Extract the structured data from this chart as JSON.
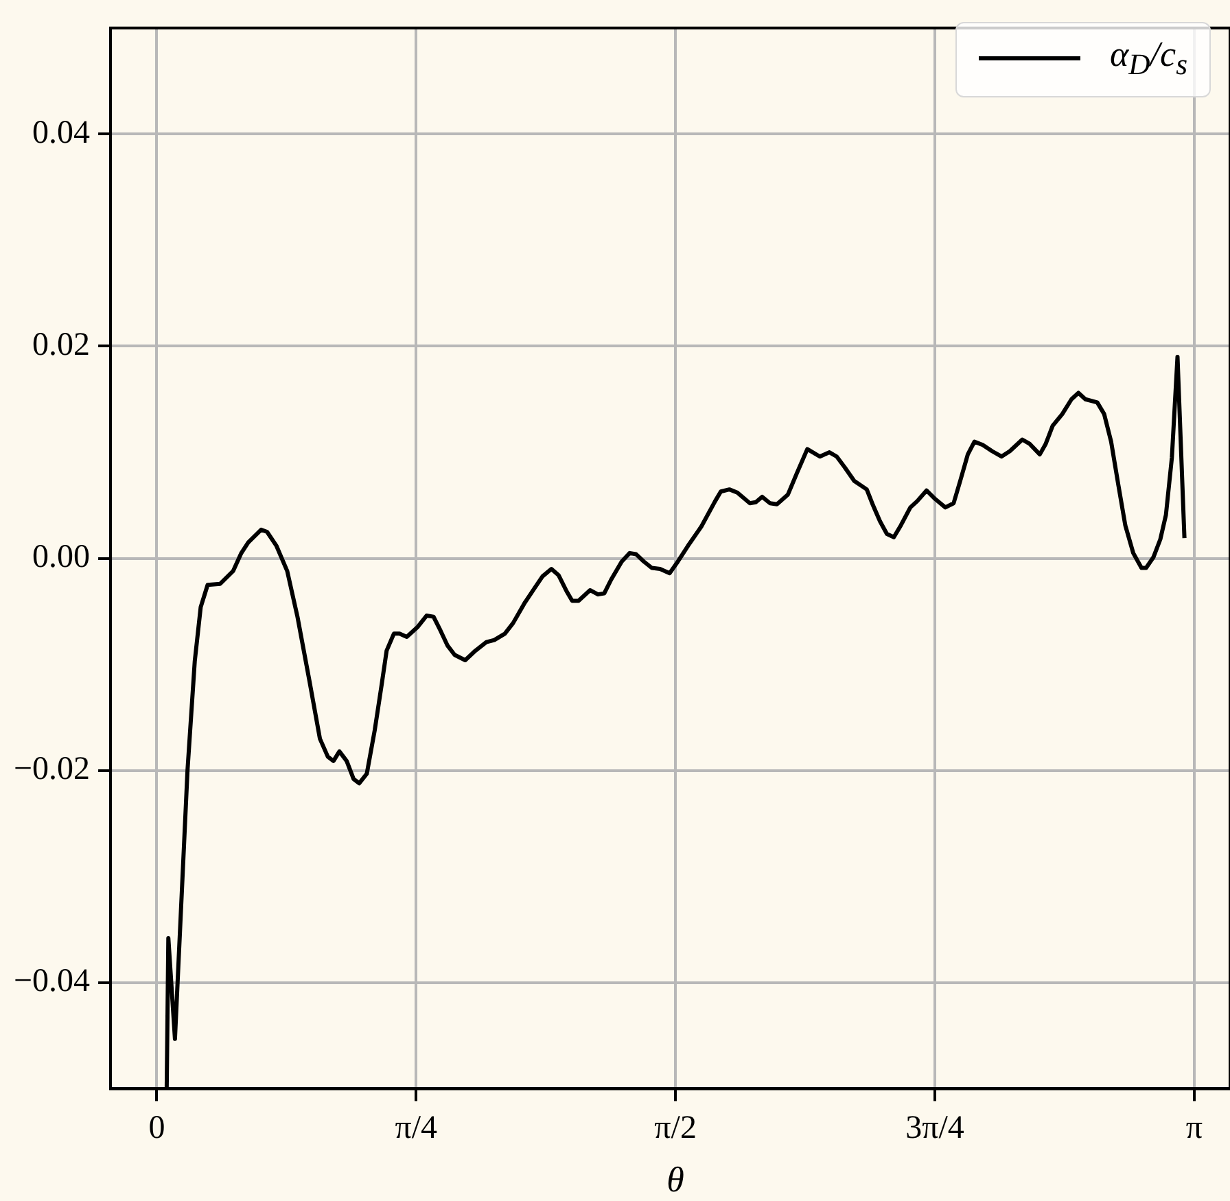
{
  "chart_data": {
    "type": "line",
    "xlabel": "θ",
    "legend": "top right",
    "grid": true,
    "marker": "none",
    "line_style": "solid",
    "xlim": [
      -0.14,
      3.25
    ],
    "ylim": [
      -0.05,
      0.05
    ],
    "xticks": [
      {
        "value": 0,
        "label": "0"
      },
      {
        "value": 0.7854,
        "label": "π/4"
      },
      {
        "value": 1.5708,
        "label": "π/2"
      },
      {
        "value": 2.3562,
        "label": "3π/4"
      },
      {
        "value": 3.1416,
        "label": "π"
      }
    ],
    "yticks": [
      {
        "value": -0.04,
        "label": "−0.04"
      },
      {
        "value": -0.02,
        "label": "−0.02"
      },
      {
        "value": 0,
        "label": "0.00"
      },
      {
        "value": 0.02,
        "label": "0.02"
      },
      {
        "value": 0.04,
        "label": "0.04"
      }
    ],
    "series": [
      {
        "name": "α$_{D}$/c$_{s}$",
        "color": "#000000",
        "x": [
          0.03,
          0.035,
          0.055,
          0.093,
          0.115,
          0.133,
          0.154,
          0.192,
          0.231,
          0.256,
          0.277,
          0.316,
          0.334,
          0.362,
          0.395,
          0.426,
          0.462,
          0.494,
          0.518,
          0.535,
          0.553,
          0.575,
          0.596,
          0.613,
          0.636,
          0.66,
          0.681,
          0.696,
          0.718,
          0.735,
          0.757,
          0.789,
          0.817,
          0.838,
          0.859,
          0.88,
          0.902,
          0.934,
          0.965,
          0.998,
          1.022,
          1.054,
          1.079,
          1.114,
          1.142,
          1.168,
          1.195,
          1.217,
          1.241,
          1.258,
          1.277,
          1.312,
          1.336,
          1.355,
          1.376,
          1.408,
          1.432,
          1.451,
          1.475,
          1.499,
          1.524,
          1.553,
          1.578,
          1.609,
          1.649,
          1.691,
          1.708,
          1.734,
          1.758,
          1.796,
          1.814,
          1.833,
          1.857,
          1.878,
          1.911,
          1.938,
          1.97,
          2.008,
          2.037,
          2.059,
          2.083,
          2.112,
          2.15,
          2.169,
          2.19,
          2.211,
          2.232,
          2.253,
          2.282,
          2.303,
          2.331,
          2.357,
          2.388,
          2.413,
          2.433,
          2.456,
          2.476,
          2.501,
          2.53,
          2.558,
          2.583,
          2.621,
          2.643,
          2.674,
          2.692,
          2.713,
          2.742,
          2.77,
          2.791,
          2.812,
          2.848,
          2.869,
          2.89,
          2.912,
          2.933,
          2.957,
          2.982,
          2.996,
          3.018,
          3.039,
          3.056,
          3.074,
          3.091,
          3.112
        ],
        "values": [
          -0.05,
          -0.0358,
          -0.0453,
          -0.02,
          -0.0097,
          -0.0046,
          -0.0025,
          -0.0024,
          -0.0012,
          0.0005,
          0.0015,
          0.0027,
          0.0025,
          0.0012,
          -0.0012,
          -0.0055,
          -0.0115,
          -0.017,
          -0.0187,
          -0.0191,
          -0.0182,
          -0.0191,
          -0.0208,
          -0.0212,
          -0.0203,
          -0.0162,
          -0.0119,
          -0.0087,
          -0.0071,
          -0.0071,
          -0.0074,
          -0.0065,
          -0.0054,
          -0.0055,
          -0.0068,
          -0.0082,
          -0.0091,
          -0.0096,
          -0.0087,
          -0.0079,
          -0.0077,
          -0.0071,
          -0.0061,
          -0.0042,
          -0.0029,
          -0.0017,
          -0.001,
          -0.0016,
          -0.0031,
          -0.004,
          -0.004,
          -0.003,
          -0.0034,
          -0.0033,
          -0.002,
          -0.0003,
          0.0005,
          0.0004,
          -0.0003,
          -0.0009,
          -0.001,
          -0.0014,
          -0.0003,
          0.0012,
          0.003,
          0.0054,
          0.0063,
          0.0065,
          0.0062,
          0.0052,
          0.0053,
          0.0058,
          0.0052,
          0.0051,
          0.006,
          0.008,
          0.0103,
          0.0096,
          0.01,
          0.0096,
          0.0086,
          0.0073,
          0.0065,
          0.005,
          0.0035,
          0.0023,
          0.002,
          0.0031,
          0.0048,
          0.0054,
          0.0064,
          0.0056,
          0.0048,
          0.0052,
          0.0073,
          0.0098,
          0.011,
          0.0107,
          0.0101,
          0.0096,
          0.0101,
          0.0112,
          0.0108,
          0.0098,
          0.0108,
          0.0125,
          0.0136,
          0.015,
          0.0156,
          0.015,
          0.0147,
          0.0136,
          0.011,
          0.0069,
          0.0031,
          0.0005,
          -0.0009,
          -0.0009,
          0.0001,
          0.0018,
          0.0041,
          0.0095,
          0.019,
          0.0019
        ]
      }
    ]
  }
}
